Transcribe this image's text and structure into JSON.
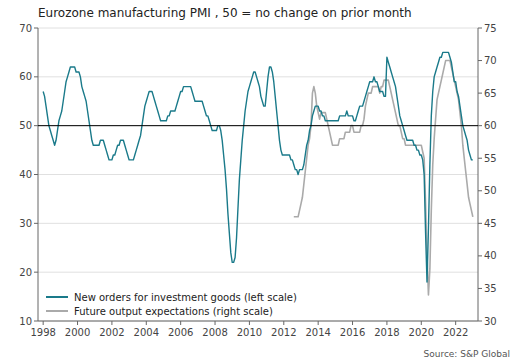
{
  "chart_data": {
    "type": "line",
    "title": "Eurozone manufacturing PMI , 50 = no change on prior month",
    "annotations": [
      "Source: S&P Global"
    ],
    "hlines": [
      50
    ],
    "xlim": [
      1997.7,
      2023.3
    ],
    "xticks": [
      1998,
      2000,
      2002,
      2004,
      2006,
      2008,
      2010,
      2012,
      2014,
      2016,
      2018,
      2020,
      2022
    ],
    "ylim": [
      10,
      70
    ],
    "yticks": [
      10,
      20,
      30,
      40,
      50,
      60,
      70
    ],
    "y2lim": [
      30,
      75
    ],
    "y2ticks": [
      30,
      35,
      40,
      45,
      50,
      55,
      60,
      65,
      70,
      75
    ],
    "grid": true,
    "legend": "lower left",
    "series": [
      {
        "name": "New orders for investment goods (left scale)",
        "color": "#1a7a8a",
        "x": [
          1998.0,
          1998.083,
          1998.167,
          1998.25,
          1998.333,
          1998.417,
          1998.5,
          1998.583,
          1998.667,
          1998.75,
          1998.833,
          1998.917,
          1999.0,
          1999.083,
          1999.167,
          1999.25,
          1999.333,
          1999.417,
          1999.5,
          1999.583,
          1999.667,
          1999.75,
          1999.833,
          1999.917,
          2000.0,
          2000.083,
          2000.167,
          2000.25,
          2000.333,
          2000.417,
          2000.5,
          2000.583,
          2000.667,
          2000.75,
          2000.833,
          2000.917,
          2001.0,
          2001.083,
          2001.167,
          2001.25,
          2001.333,
          2001.417,
          2001.5,
          2001.583,
          2001.667,
          2001.75,
          2001.833,
          2001.917,
          2002.0,
          2002.083,
          2002.167,
          2002.25,
          2002.333,
          2002.417,
          2002.5,
          2002.583,
          2002.667,
          2002.75,
          2002.833,
          2002.917,
          2003.0,
          2003.083,
          2003.167,
          2003.25,
          2003.333,
          2003.417,
          2003.5,
          2003.583,
          2003.667,
          2003.75,
          2003.833,
          2003.917,
          2004.0,
          2004.083,
          2004.167,
          2004.25,
          2004.333,
          2004.417,
          2004.5,
          2004.583,
          2004.667,
          2004.75,
          2004.833,
          2004.917,
          2005.0,
          2005.083,
          2005.167,
          2005.25,
          2005.333,
          2005.417,
          2005.5,
          2005.583,
          2005.667,
          2005.75,
          2005.833,
          2005.917,
          2006.0,
          2006.083,
          2006.167,
          2006.25,
          2006.333,
          2006.417,
          2006.5,
          2006.583,
          2006.667,
          2006.75,
          2006.833,
          2006.917,
          2007.0,
          2007.083,
          2007.167,
          2007.25,
          2007.333,
          2007.417,
          2007.5,
          2007.583,
          2007.667,
          2007.75,
          2007.833,
          2007.917,
          2008.0,
          2008.083,
          2008.167,
          2008.25,
          2008.333,
          2008.417,
          2008.5,
          2008.583,
          2008.667,
          2008.75,
          2008.833,
          2008.917,
          2009.0,
          2009.083,
          2009.167,
          2009.25,
          2009.333,
          2009.417,
          2009.5,
          2009.583,
          2009.667,
          2009.75,
          2009.833,
          2009.917,
          2010.0,
          2010.083,
          2010.167,
          2010.25,
          2010.333,
          2010.417,
          2010.5,
          2010.583,
          2010.667,
          2010.75,
          2010.833,
          2010.917,
          2011.0,
          2011.083,
          2011.167,
          2011.25,
          2011.333,
          2011.417,
          2011.5,
          2011.583,
          2011.667,
          2011.75,
          2011.833,
          2011.917,
          2012.0,
          2012.083,
          2012.167,
          2012.25,
          2012.333,
          2012.417,
          2012.5,
          2012.583,
          2012.667,
          2012.75,
          2012.833,
          2012.917,
          2013.0,
          2013.083,
          2013.167,
          2013.25,
          2013.333,
          2013.417,
          2013.5,
          2013.583,
          2013.667,
          2013.75,
          2013.833,
          2013.917,
          2014.0,
          2014.083,
          2014.167,
          2014.25,
          2014.333,
          2014.417,
          2014.5,
          2014.583,
          2014.667,
          2014.75,
          2014.833,
          2014.917,
          2015.0,
          2015.083,
          2015.167,
          2015.25,
          2015.333,
          2015.417,
          2015.5,
          2015.583,
          2015.667,
          2015.75,
          2015.833,
          2015.917,
          2016.0,
          2016.083,
          2016.167,
          2016.25,
          2016.333,
          2016.417,
          2016.5,
          2016.583,
          2016.667,
          2016.75,
          2016.833,
          2016.917,
          2017.0,
          2017.083,
          2017.167,
          2017.25,
          2017.333,
          2017.417,
          2017.5,
          2017.583,
          2017.667,
          2017.75,
          2017.833,
          2017.917,
          2018.0,
          2018.083,
          2018.167,
          2018.25,
          2018.333,
          2018.417,
          2018.5,
          2018.583,
          2018.667,
          2018.75,
          2018.833,
          2018.917,
          2019.0,
          2019.083,
          2019.167,
          2019.25,
          2019.333,
          2019.417,
          2019.5,
          2019.583,
          2019.667,
          2019.75,
          2019.833,
          2019.917,
          2020.0,
          2020.083,
          2020.167,
          2020.25,
          2020.333,
          2020.417,
          2020.5,
          2020.583,
          2020.667,
          2020.75,
          2020.833,
          2020.917,
          2021.0,
          2021.083,
          2021.167,
          2021.25,
          2021.333,
          2021.417,
          2021.5,
          2021.583,
          2021.667,
          2021.75,
          2021.833,
          2021.917,
          2022.0,
          2022.083,
          2022.167,
          2022.25,
          2022.333,
          2022.417,
          2022.5,
          2022.583,
          2022.667,
          2022.75,
          2022.833,
          2022.917,
          2023.0
        ],
        "values": [
          57,
          56,
          54,
          52,
          50,
          49,
          48,
          47,
          46,
          47,
          49,
          51,
          52,
          53,
          55,
          57,
          59,
          60,
          61,
          62,
          62,
          62,
          62,
          61,
          61,
          61,
          60,
          58,
          57,
          56,
          55,
          53,
          51,
          49,
          47,
          46,
          46,
          46,
          46,
          46,
          47,
          47,
          47,
          46,
          45,
          44,
          43,
          43,
          43,
          44,
          44,
          45,
          46,
          46,
          47,
          47,
          47,
          46,
          45,
          44,
          43,
          43,
          43,
          43,
          44,
          45,
          46,
          47,
          48,
          50,
          52,
          54,
          55,
          56,
          57,
          57,
          57,
          56,
          55,
          54,
          53,
          52,
          51,
          51,
          51,
          51,
          51,
          52,
          52,
          53,
          53,
          53,
          53,
          54,
          55,
          56,
          57,
          57,
          58,
          58,
          58,
          58,
          58,
          58,
          57,
          56,
          55,
          55,
          55,
          55,
          55,
          55,
          54,
          53,
          52,
          52,
          51,
          50,
          49,
          49,
          49,
          49,
          50,
          50,
          49,
          47,
          44,
          41,
          37,
          32,
          28,
          24,
          22,
          22,
          23,
          27,
          33,
          39,
          43,
          47,
          50,
          53,
          55,
          57,
          58,
          59,
          60,
          61,
          61,
          60,
          59,
          58,
          56,
          55,
          54,
          54,
          57,
          60,
          62,
          62,
          61,
          59,
          56,
          53,
          50,
          47,
          45,
          44,
          44,
          44,
          44,
          44,
          44,
          43,
          43,
          42,
          41,
          41,
          40,
          41,
          41,
          41,
          42,
          44,
          46,
          47,
          49,
          50,
          52,
          53,
          54,
          54,
          54,
          53,
          53,
          52,
          52,
          51,
          51,
          51,
          51,
          51,
          51,
          51,
          51,
          51,
          51,
          52,
          52,
          52,
          52,
          52,
          53,
          52,
          52,
          52,
          52,
          51,
          51,
          52,
          53,
          54,
          54,
          54,
          55,
          56,
          57,
          58,
          59,
          59,
          59,
          60,
          59,
          59,
          58,
          57,
          57,
          57,
          56,
          56,
          64,
          63,
          62,
          61,
          60,
          59,
          58,
          56,
          54,
          52,
          51,
          50,
          49,
          48,
          47,
          47,
          47,
          47,
          47,
          46,
          46,
          45,
          45,
          44,
          44,
          43,
          40,
          28,
          18,
          29,
          42,
          52,
          57,
          60,
          61,
          62,
          63,
          64,
          64,
          65,
          65,
          65,
          65,
          65,
          64,
          63,
          61,
          59,
          59,
          57,
          56,
          54,
          52,
          50,
          49,
          48,
          47,
          45,
          44,
          43,
          43
        ]
      },
      {
        "name": "Future output expectations (right scale)",
        "color": "#aaaaaa",
        "axis": "y2",
        "x": [
          2012.583,
          2012.667,
          2012.75,
          2012.833,
          2012.917,
          2013.0,
          2013.083,
          2013.167,
          2013.25,
          2013.333,
          2013.417,
          2013.5,
          2013.583,
          2013.667,
          2013.75,
          2013.833,
          2013.917,
          2014.0,
          2014.083,
          2014.167,
          2014.25,
          2014.333,
          2014.417,
          2014.5,
          2014.583,
          2014.667,
          2014.75,
          2014.833,
          2014.917,
          2015.0,
          2015.083,
          2015.167,
          2015.25,
          2015.333,
          2015.417,
          2015.5,
          2015.583,
          2015.667,
          2015.75,
          2015.833,
          2015.917,
          2016.0,
          2016.083,
          2016.167,
          2016.25,
          2016.333,
          2016.417,
          2016.5,
          2016.583,
          2016.667,
          2016.75,
          2016.833,
          2016.917,
          2017.0,
          2017.083,
          2017.167,
          2017.25,
          2017.333,
          2017.417,
          2017.5,
          2017.583,
          2017.667,
          2017.75,
          2017.833,
          2017.917,
          2018.0,
          2018.083,
          2018.167,
          2018.25,
          2018.333,
          2018.417,
          2018.5,
          2018.583,
          2018.667,
          2018.75,
          2018.833,
          2018.917,
          2019.0,
          2019.083,
          2019.167,
          2019.25,
          2019.333,
          2019.417,
          2019.5,
          2019.583,
          2019.667,
          2019.75,
          2019.833,
          2019.917,
          2020.0,
          2020.083,
          2020.167,
          2020.25,
          2020.333,
          2020.417,
          2020.5,
          2020.583,
          2020.667,
          2020.75,
          2020.833,
          2020.917,
          2021.0,
          2021.083,
          2021.167,
          2021.25,
          2021.333,
          2021.417,
          2021.5,
          2021.583,
          2021.667,
          2021.75,
          2021.833,
          2021.917,
          2022.0,
          2022.083,
          2022.167,
          2022.25,
          2022.333,
          2022.417,
          2022.5,
          2022.583,
          2022.667,
          2022.75,
          2022.833,
          2022.917,
          2023.0
        ],
        "values": [
          46,
          46,
          46,
          46,
          47,
          48,
          49,
          51,
          53,
          55,
          57,
          58,
          60,
          65,
          66,
          65,
          63,
          62,
          61,
          62,
          62,
          62,
          62,
          61,
          60,
          59,
          58,
          57,
          57,
          57,
          57,
          57,
          58,
          58,
          58,
          58,
          59,
          59,
          59,
          59,
          60,
          60,
          59,
          59,
          59,
          59,
          59,
          60,
          60,
          61,
          63,
          64,
          65,
          65,
          65,
          66,
          66,
          66,
          66,
          66,
          65,
          66,
          66,
          67,
          67,
          67,
          67,
          66,
          65,
          64,
          63,
          62,
          61,
          60,
          60,
          59,
          58,
          58,
          57,
          57,
          57,
          57,
          57,
          57,
          57,
          57,
          57,
          57,
          57,
          57,
          56,
          55,
          48,
          40,
          34,
          38,
          47,
          54,
          58,
          61,
          64,
          65,
          66,
          67,
          68,
          69,
          70,
          70,
          70,
          70,
          69,
          68,
          67,
          66,
          65,
          64,
          62,
          60,
          57,
          55,
          53,
          51,
          49,
          48,
          47,
          46
        ]
      }
    ]
  }
}
